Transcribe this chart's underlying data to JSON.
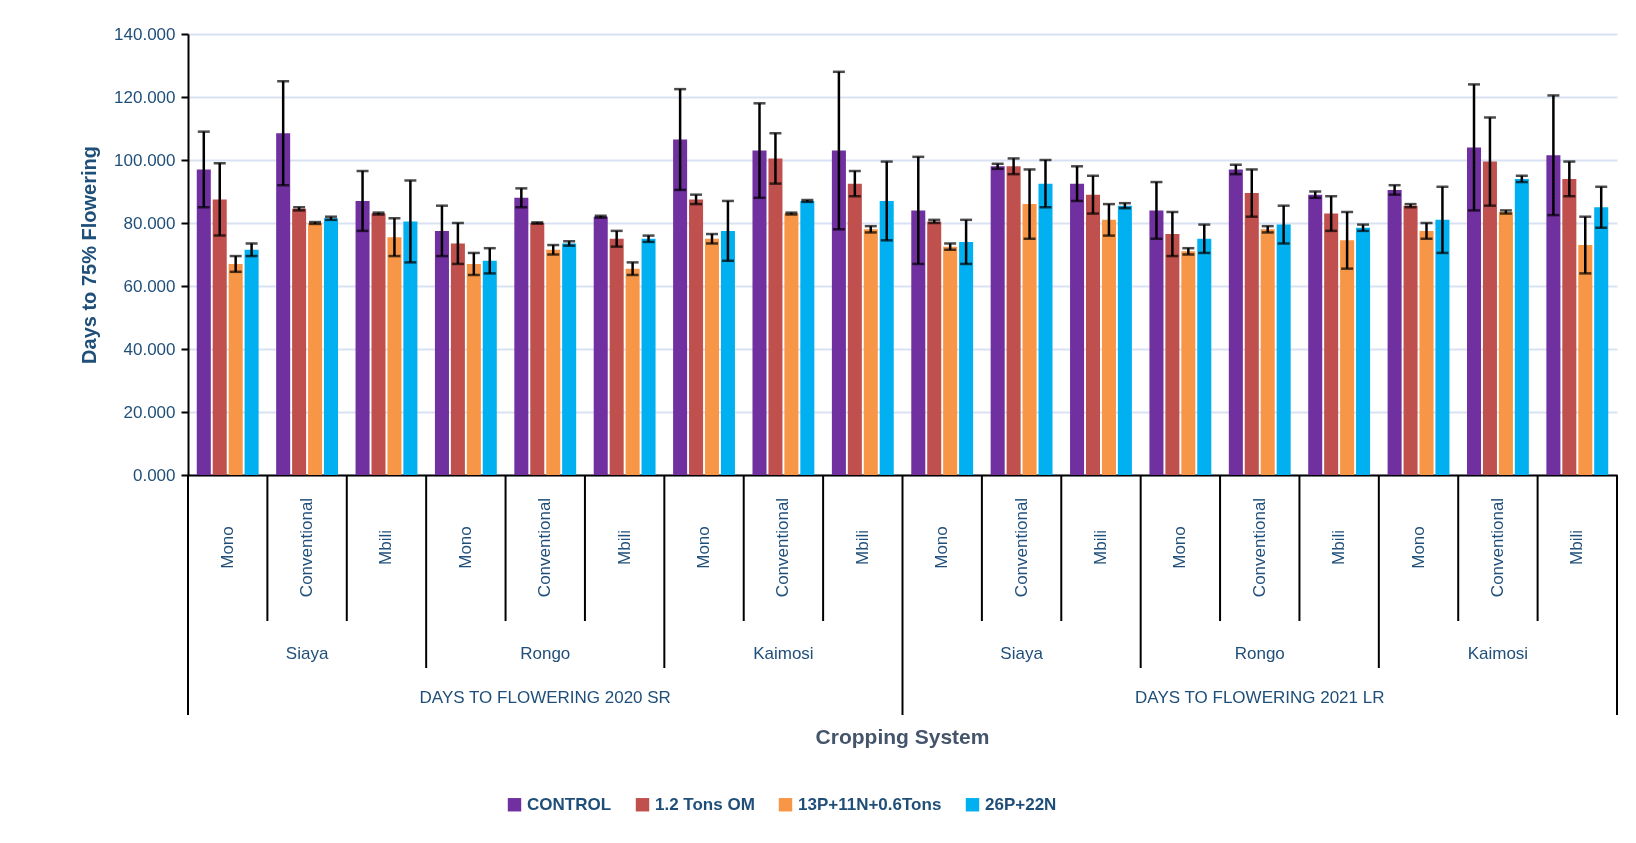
{
  "chart_data": {
    "type": "bar",
    "ylabel": "Days to 75% Flowering",
    "categories": [
      "Mono",
      "Conventional",
      "Mbili",
      "Mono",
      "Conventional",
      "Mbili",
      "Mono",
      "Conventional",
      "Mbili",
      "Mono",
      "Conventional",
      "Mbili",
      "Mono",
      "Conventional",
      "Mbili",
      "Mono",
      "Conventional",
      "Mbili"
    ],
    "series": [
      {
        "name": "CONTROL",
        "color": "#7030a0",
        "values": [
          97,
          108.5,
          87,
          77.5,
          88,
          82,
          106.5,
          103,
          103,
          84,
          98,
          92.5,
          84,
          97,
          89,
          90.5,
          104,
          101.5
        ],
        "errors": [
          12,
          16.5,
          9.5,
          8,
          3,
          0.3,
          16,
          15,
          25,
          17,
          0.8,
          5.5,
          9,
          1.5,
          1,
          1.5,
          20,
          19
        ]
      },
      {
        "name": "1.2 Tons OM",
        "color": "#c0504d",
        "values": [
          87.5,
          84.5,
          83,
          73.5,
          80,
          75,
          87.5,
          100.5,
          92.5,
          80.5,
          98,
          89,
          76.5,
          89.5,
          83,
          85.5,
          99.5,
          94
        ],
        "errors": [
          11.5,
          0.5,
          0.3,
          6.5,
          0.2,
          2.5,
          1.5,
          8,
          4,
          0.5,
          2.5,
          6,
          7,
          7.5,
          5.5,
          0.5,
          14,
          5.5
        ]
      },
      {
        "name": "13P+11N+0.6Tons",
        "color": "#f79646",
        "values": [
          67,
          80,
          75.5,
          67,
          71.5,
          65.5,
          75,
          83,
          78,
          72.5,
          86,
          81,
          71,
          78,
          74.5,
          77.5,
          83.5,
          73
        ],
        "errors": [
          2.5,
          0.3,
          6,
          3.5,
          1.5,
          2,
          1.5,
          0.3,
          1,
          1,
          11,
          5,
          1,
          1,
          9,
          2.5,
          0.5,
          9
        ]
      },
      {
        "name": "26P+22N",
        "color": "#00b0f0",
        "values": [
          71.5,
          81.5,
          80.5,
          68,
          73.5,
          75,
          77.5,
          87,
          87,
          74,
          92.5,
          85.5,
          75,
          79.5,
          78.5,
          81,
          94,
          85
        ],
        "errors": [
          2,
          0.5,
          13,
          4,
          0.7,
          1,
          9.5,
          0.3,
          12.5,
          7,
          7.5,
          0.8,
          4.5,
          6,
          1,
          10.5,
          1,
          6.5
        ]
      }
    ],
    "ylim": [
      0,
      140
    ],
    "yticks": [
      {
        "value": 0,
        "label": "0.000"
      },
      {
        "value": 20,
        "label": "20.000"
      },
      {
        "value": 40,
        "label": "40.000"
      },
      {
        "value": 60,
        "label": "60.000"
      },
      {
        "value": 80,
        "label": "80.000"
      },
      {
        "value": 100,
        "label": "100.000"
      },
      {
        "value": 120,
        "label": "120.000"
      },
      {
        "value": 140,
        "label": "140.000"
      }
    ],
    "grid": "y",
    "legend": "bottom",
    "annotations": [
      "Cropping System",
      "Siaya",
      "Rongo",
      "Kaimosi",
      "Siaya",
      "Rongo",
      "Kaimosi",
      "DAYS TO FLOWERING 2020 SR",
      "DAYS TO FLOWERING 2021 LR"
    ]
  }
}
